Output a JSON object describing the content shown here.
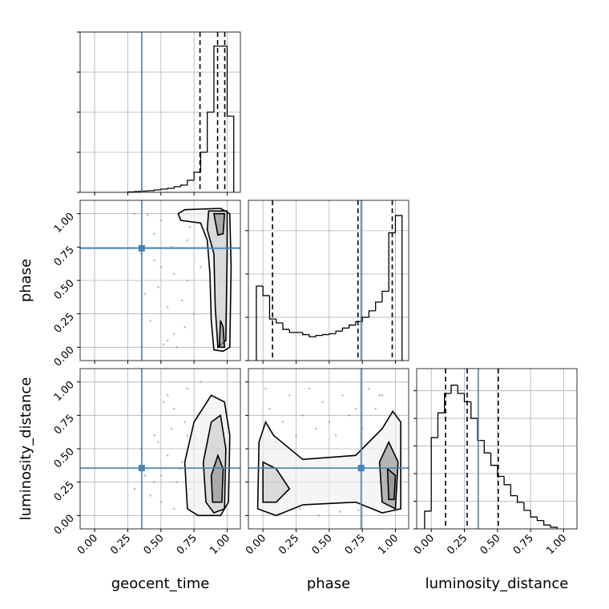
{
  "chart_data": [
    {
      "type": "histogram",
      "color": "#000000",
      "truth_color": "#4682b4",
      "grid": true,
      "bins": [
        0.25,
        0.3,
        0.35,
        0.4,
        0.45,
        0.5,
        0.55,
        0.6,
        0.65,
        0.7,
        0.75,
        0.8,
        0.85,
        0.9,
        0.95,
        1.0,
        1.05
      ],
      "values": [
        0.01,
        0.02,
        0.03,
        0.04,
        0.06,
        0.08,
        0.1,
        0.14,
        0.18,
        0.3,
        0.5,
        1.0,
        2.0,
        3.65,
        3.65,
        1.9
      ],
      "quantiles": [
        0.795,
        0.928,
        0.982
      ],
      "truth": 0.355,
      "xlim": [
        -0.11,
        1.1
      ],
      "ylim": [
        0,
        4
      ],
      "xticks": [
        0,
        0.25,
        0.5,
        0.75,
        1
      ],
      "yticks": [
        0,
        1,
        2,
        3,
        4
      ]
    },
    {
      "type": "scatter",
      "color": "#808080",
      "truth_color": "#4682b4",
      "contour_color": "#000000",
      "grid": true,
      "ylabel": "phase",
      "x": [
        0.3,
        0.4,
        0.45,
        0.5,
        0.55,
        0.6,
        0.62,
        0.7,
        0.5,
        0.35,
        0.42,
        0.58,
        0.66,
        0.72,
        0.55,
        0.48,
        0.6,
        0.68,
        0.38,
        0.52,
        0.75,
        0.8,
        0.64,
        0.45,
        0.7
      ],
      "y": [
        1.0,
        0.99,
        0.85,
        0.6,
        0.3,
        0.1,
        0.0,
        0.5,
        0.95,
        0.7,
        0.2,
        0.75,
        0.35,
        0.9,
        0.05,
        0.45,
        0.55,
        0.15,
        0.4,
        0.02,
        0.25,
        0.6,
        0.98,
        0.65,
        0.8
      ],
      "contours": [
        {
          "x": [
            0.63,
            0.68,
            0.95,
            1.02,
            1.03,
            1.02,
            0.97,
            0.9,
            0.88,
            0.87,
            0.85,
            0.8,
            0.65
          ],
          "y": [
            1.0,
            1.03,
            1.04,
            1.0,
            0.6,
            0.0,
            -0.03,
            -0.02,
            0.2,
            0.55,
            0.8,
            0.93,
            0.95
          ]
        },
        {
          "x": [
            0.86,
            1.0,
            1.0,
            0.99,
            0.93,
            0.91,
            0.9,
            0.85
          ],
          "y": [
            1.02,
            1.02,
            0.7,
            0.05,
            0.0,
            0.3,
            0.7,
            0.88
          ]
        },
        {
          "x": [
            0.9,
            0.98,
            0.97,
            0.93
          ],
          "y": [
            1.0,
            1.0,
            0.85,
            0.84
          ]
        },
        {
          "x": [
            0.94,
            0.98,
            0.97,
            0.95
          ],
          "y": [
            0.0,
            0.0,
            0.15,
            0.2
          ]
        }
      ],
      "truth": {
        "x": 0.355,
        "y": 0.741
      },
      "xlim": [
        -0.11,
        1.1
      ],
      "ylim": [
        -0.1,
        1.1
      ],
      "xticks": [
        0,
        0.25,
        0.5,
        0.75,
        1
      ],
      "yticks": [
        {
          "value": 0,
          "label": "0.00"
        },
        {
          "value": 0.25,
          "label": "0.25"
        },
        {
          "value": 0.5,
          "label": "0.50"
        },
        {
          "value": 0.75,
          "label": "0.75"
        },
        {
          "value": 1,
          "label": "1.00"
        }
      ]
    },
    {
      "type": "histogram",
      "color": "#000000",
      "truth_color": "#4682b4",
      "grid": true,
      "bins": [
        -0.05,
        0.0,
        0.05,
        0.1,
        0.15,
        0.2,
        0.25,
        0.3,
        0.35,
        0.4,
        0.45,
        0.5,
        0.55,
        0.6,
        0.65,
        0.7,
        0.75,
        0.8,
        0.85,
        0.9,
        0.95,
        1.0,
        1.05
      ],
      "values": [
        1.72,
        1.5,
        0.96,
        0.87,
        0.72,
        0.65,
        0.65,
        0.6,
        0.55,
        0.58,
        0.6,
        0.62,
        0.68,
        0.75,
        0.82,
        0.9,
        1.0,
        1.15,
        1.35,
        1.6,
        2.95,
        3.35
      ],
      "quantiles": [
        0.072,
        0.717,
        0.976
      ],
      "truth": 0.741,
      "xlim": [
        -0.11,
        1.1
      ],
      "ylim": [
        0,
        3.7
      ],
      "xticks": [
        0,
        0.25,
        0.5,
        0.75,
        1
      ],
      "yticks": [
        0,
        1,
        2,
        3
      ]
    },
    {
      "type": "scatter",
      "color": "#808080",
      "truth_color": "#4682b4",
      "contour_color": "#000000",
      "grid": true,
      "xlabel": "geocent_time",
      "ylabel": "luminosity_distance",
      "x": [
        0.3,
        0.4,
        0.45,
        0.5,
        0.55,
        0.6,
        0.62,
        0.7,
        0.5,
        0.35,
        0.42,
        0.58,
        0.66,
        0.72,
        0.55,
        0.48,
        0.6,
        0.68,
        0.38,
        0.52,
        0.75,
        0.8,
        0.64,
        0.45,
        0.7
      ],
      "y": [
        0.2,
        0.35,
        0.6,
        0.1,
        0.45,
        0.8,
        0.25,
        0.95,
        0.3,
        0.5,
        0.15,
        0.65,
        0.4,
        0.2,
        0.9,
        0.55,
        0.05,
        0.7,
        0.3,
        0.85,
        0.5,
        1.0,
        0.35,
        0.25,
        0.6
      ],
      "contours": [
        {
          "x": [
            0.7,
            0.68,
            0.75,
            0.88,
            0.98,
            1.02,
            1.01,
            0.95,
            0.78
          ],
          "y": [
            0.05,
            0.4,
            0.7,
            0.9,
            0.85,
            0.6,
            0.1,
            0.0,
            0.0
          ]
        },
        {
          "x": [
            0.84,
            0.82,
            0.88,
            0.95,
            0.99,
            0.98,
            0.9
          ],
          "y": [
            0.1,
            0.4,
            0.7,
            0.75,
            0.5,
            0.05,
            0.02
          ]
        },
        {
          "x": [
            0.89,
            0.88,
            0.93,
            0.97,
            0.96
          ],
          "y": [
            0.1,
            0.3,
            0.45,
            0.35,
            0.1
          ]
        }
      ],
      "truth": {
        "x": 0.355,
        "y": 0.355
      },
      "xlim": [
        -0.11,
        1.1
      ],
      "ylim": [
        -0.1,
        1.1
      ],
      "xticks": [
        {
          "value": 0,
          "label": "0.00"
        },
        {
          "value": 0.25,
          "label": "0.25"
        },
        {
          "value": 0.5,
          "label": "0.50"
        },
        {
          "value": 0.75,
          "label": "0.75"
        },
        {
          "value": 1,
          "label": "1.00"
        }
      ],
      "yticks": [
        {
          "value": 0,
          "label": "0.00"
        },
        {
          "value": 0.25,
          "label": "0.25"
        },
        {
          "value": 0.5,
          "label": "0.50"
        },
        {
          "value": 0.75,
          "label": "0.75"
        },
        {
          "value": 1,
          "label": "1.00"
        }
      ]
    },
    {
      "type": "scatter",
      "color": "#808080",
      "truth_color": "#4682b4",
      "contour_color": "#000000",
      "grid": true,
      "xlabel": "phase",
      "x": [
        0.05,
        0.1,
        0.15,
        0.2,
        0.25,
        0.3,
        0.35,
        0.4,
        0.45,
        0.5,
        0.55,
        0.6,
        0.65,
        0.7,
        0.75,
        0.8,
        0.85,
        0.9,
        0.12,
        0.28,
        0.42,
        0.58,
        0.72,
        0.88,
        0.02
      ],
      "y": [
        0.8,
        0.55,
        0.7,
        0.9,
        0.6,
        0.75,
        0.95,
        0.65,
        0.85,
        0.7,
        0.6,
        0.9,
        0.75,
        0.8,
        0.65,
        0.95,
        0.8,
        0.9,
        0.02,
        0.05,
        0.0,
        0.03,
        0.04,
        0.9,
        0.95
      ],
      "contours": [
        {
          "x": [
            -0.04,
            -0.03,
            0.02,
            0.08,
            0.3,
            0.7,
            0.9,
            0.98,
            1.04,
            1.04,
            0.9,
            0.7,
            0.3,
            0.1
          ],
          "y": [
            0.05,
            0.55,
            0.7,
            0.6,
            0.42,
            0.45,
            0.65,
            0.78,
            0.7,
            0.05,
            0.02,
            0.1,
            0.08,
            0.0
          ]
        },
        {
          "x": [
            0.0,
            0.0,
            0.1,
            0.2,
            0.1
          ],
          "y": [
            0.1,
            0.4,
            0.35,
            0.2,
            0.1
          ]
        },
        {
          "x": [
            0.9,
            0.88,
            0.95,
            1.02,
            1.0
          ],
          "y": [
            0.1,
            0.4,
            0.55,
            0.4,
            0.05
          ]
        },
        {
          "x": [
            0.95,
            0.94,
            1.0,
            0.99
          ],
          "y": [
            0.12,
            0.35,
            0.3,
            0.12
          ]
        }
      ],
      "truth": {
        "x": 0.741,
        "y": 0.355
      },
      "xlim": [
        -0.11,
        1.1
      ],
      "ylim": [
        -0.1,
        1.1
      ],
      "xticks": [
        {
          "value": 0,
          "label": "0.00"
        },
        {
          "value": 0.25,
          "label": "0.25"
        },
        {
          "value": 0.5,
          "label": "0.50"
        },
        {
          "value": 0.75,
          "label": "0.75"
        },
        {
          "value": 1,
          "label": "1.00"
        }
      ],
      "yticks": [
        0,
        0.25,
        0.5,
        0.75,
        1
      ]
    },
    {
      "type": "histogram",
      "color": "#000000",
      "truth_color": "#4682b4",
      "grid": true,
      "xlabel": "luminosity_distance",
      "bins": [
        -0.05,
        0.0,
        0.05,
        0.1,
        0.15,
        0.2,
        0.25,
        0.3,
        0.35,
        0.4,
        0.45,
        0.5,
        0.55,
        0.6,
        0.65,
        0.7,
        0.75,
        0.8,
        0.85,
        0.9,
        0.95
      ],
      "values": [
        0.64,
        3.3,
        4.2,
        4.9,
        5.2,
        4.9,
        4.6,
        4.0,
        3.2,
        2.75,
        2.3,
        1.9,
        1.6,
        1.2,
        0.96,
        0.67,
        0.43,
        0.3,
        0.14,
        0.06
      ],
      "quantiles": [
        0.108,
        0.271,
        0.506
      ],
      "truth": 0.355,
      "xlim": [
        -0.11,
        1.1
      ],
      "ylim": [
        0,
        5.8
      ],
      "xticks": [
        {
          "value": 0,
          "label": "0.00"
        },
        {
          "value": 0.25,
          "label": "0.25"
        },
        {
          "value": 0.5,
          "label": "0.50"
        },
        {
          "value": 0.75,
          "label": "0.75"
        },
        {
          "value": 1,
          "label": "1.00"
        }
      ],
      "yticks": [
        0,
        1,
        2,
        3,
        4,
        5
      ]
    }
  ]
}
